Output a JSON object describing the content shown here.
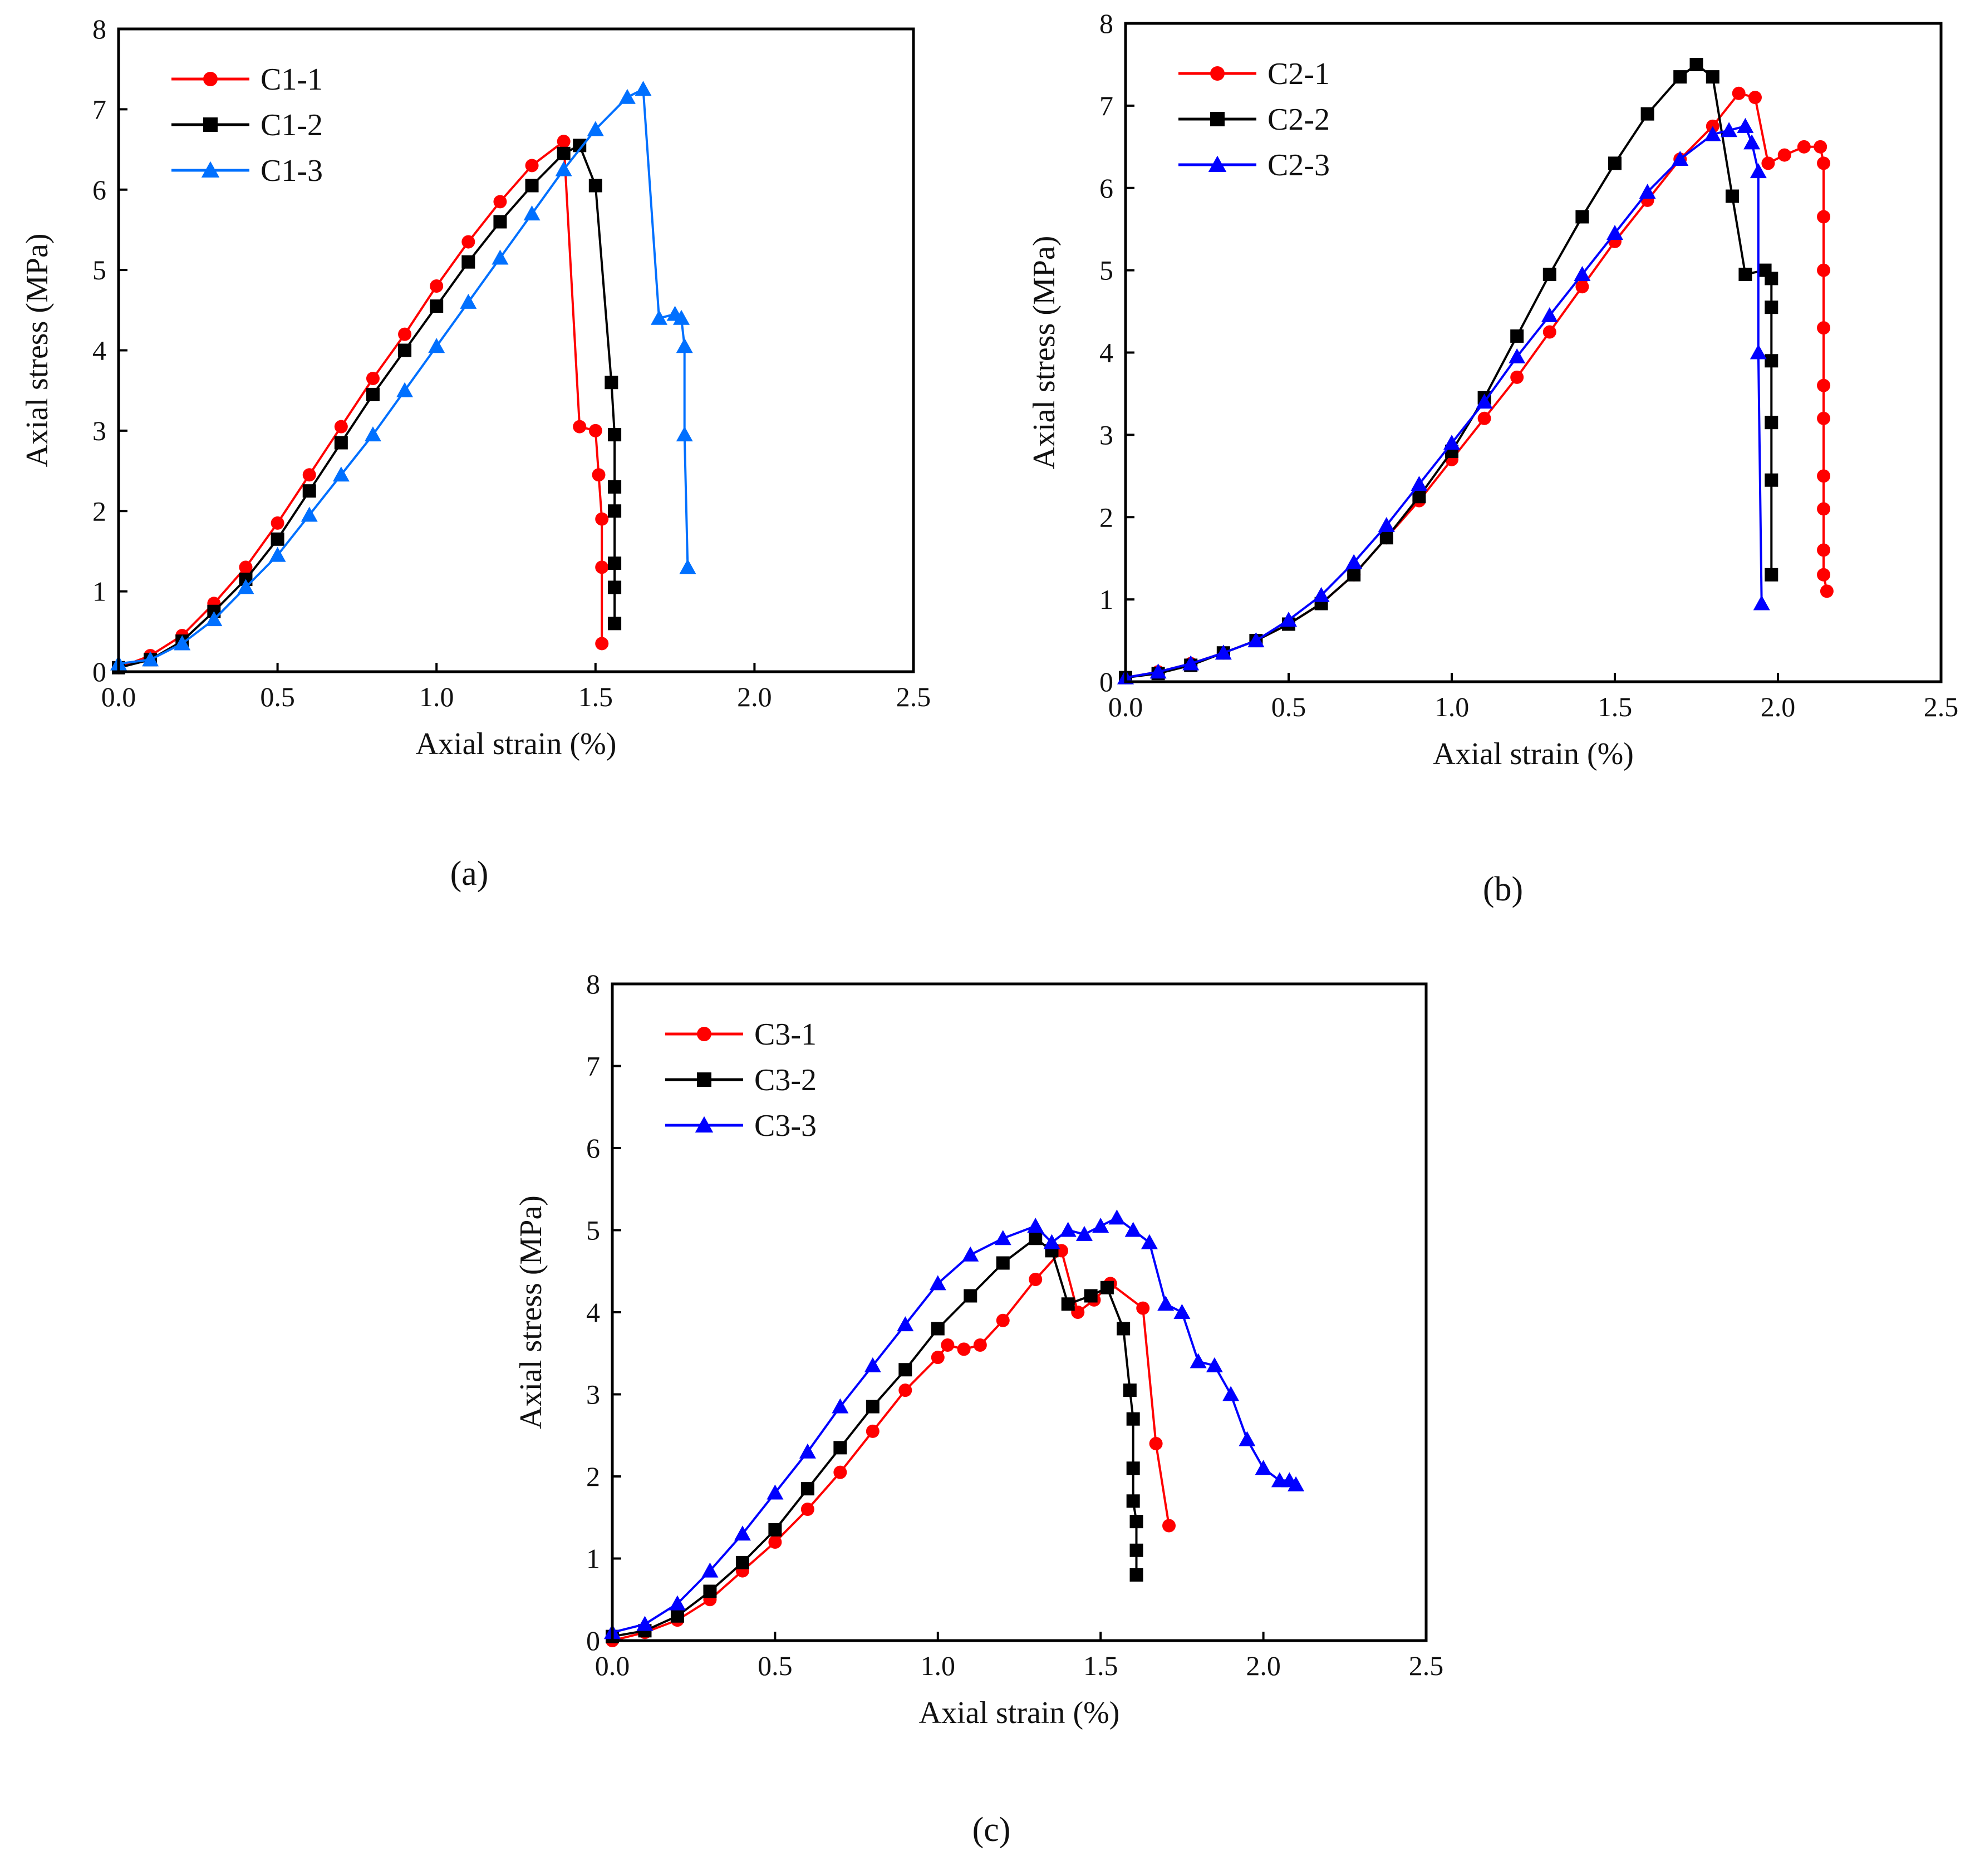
{
  "chart_data": [
    {
      "type": "line",
      "panel_label": "(a)",
      "xlabel": "Axial strain (%)",
      "ylabel": "Axial stress (MPa)",
      "xlim": [
        0,
        2.5
      ],
      "ylim": [
        0,
        8
      ],
      "xticks": [
        "0.0",
        "0.5",
        "1.0",
        "1.5",
        "2.0",
        "2.5"
      ],
      "yticks": [
        "0",
        "1",
        "2",
        "3",
        "4",
        "5",
        "6",
        "7",
        "8"
      ],
      "legend_position": "top-left",
      "series": [
        {
          "name": "C1-1",
          "color": "#ff0000",
          "marker": "circle",
          "x": [
            0,
            0.1,
            0.2,
            0.3,
            0.4,
            0.5,
            0.6,
            0.7,
            0.8,
            0.9,
            1.0,
            1.1,
            1.2,
            1.3,
            1.4,
            1.45,
            1.5,
            1.51,
            1.52,
            1.52,
            1.52
          ],
          "y": [
            0.05,
            0.2,
            0.45,
            0.85,
            1.3,
            1.85,
            2.45,
            3.05,
            3.65,
            4.2,
            4.8,
            5.35,
            5.85,
            6.3,
            6.6,
            3.05,
            3.0,
            2.45,
            1.9,
            1.3,
            0.35
          ]
        },
        {
          "name": "C1-2",
          "color": "#000000",
          "marker": "square",
          "x": [
            0,
            0.1,
            0.2,
            0.3,
            0.4,
            0.5,
            0.6,
            0.7,
            0.8,
            0.9,
            1.0,
            1.1,
            1.2,
            1.3,
            1.4,
            1.45,
            1.5,
            1.55,
            1.56,
            1.56,
            1.56,
            1.56,
            1.56,
            1.56
          ],
          "y": [
            0.05,
            0.15,
            0.38,
            0.75,
            1.15,
            1.65,
            2.25,
            2.85,
            3.45,
            4.0,
            4.55,
            5.1,
            5.6,
            6.05,
            6.45,
            6.55,
            6.05,
            3.6,
            2.95,
            2.3,
            2.0,
            1.35,
            1.05,
            0.6
          ]
        },
        {
          "name": "C1-3",
          "color": "#0070ff",
          "marker": "triangle",
          "x": [
            0,
            0.1,
            0.2,
            0.3,
            0.4,
            0.5,
            0.6,
            0.7,
            0.8,
            0.9,
            1.0,
            1.1,
            1.2,
            1.3,
            1.4,
            1.5,
            1.6,
            1.65,
            1.7,
            1.75,
            1.77,
            1.78,
            1.78,
            1.79
          ],
          "y": [
            0.1,
            0.15,
            0.35,
            0.65,
            1.05,
            1.45,
            1.95,
            2.45,
            2.95,
            3.5,
            4.05,
            4.6,
            5.15,
            5.7,
            6.25,
            6.75,
            7.15,
            7.25,
            4.4,
            4.45,
            4.4,
            4.05,
            2.95,
            1.3
          ]
        }
      ]
    },
    {
      "type": "line",
      "panel_label": "(b)",
      "xlabel": "Axial strain (%)",
      "ylabel": "Axial stress (MPa)",
      "xlim": [
        0,
        2.5
      ],
      "ylim": [
        0,
        8
      ],
      "xticks": [
        "0.0",
        "0.5",
        "1.0",
        "1.5",
        "2.0",
        "2.5"
      ],
      "yticks": [
        "0",
        "1",
        "2",
        "3",
        "4",
        "5",
        "6",
        "7",
        "8"
      ],
      "legend_position": "top-left",
      "series": [
        {
          "name": "C2-1",
          "color": "#ff0000",
          "marker": "circle",
          "x": [
            0,
            0.1,
            0.2,
            0.3,
            0.4,
            0.5,
            0.6,
            0.7,
            0.8,
            0.9,
            1.0,
            1.1,
            1.2,
            1.3,
            1.4,
            1.5,
            1.6,
            1.7,
            1.8,
            1.88,
            1.93,
            1.97,
            2.02,
            2.08,
            2.13,
            2.14,
            2.14,
            2.14,
            2.14,
            2.14,
            2.14,
            2.14,
            2.14,
            2.14,
            2.14,
            2.15
          ],
          "y": [
            0.05,
            0.12,
            0.22,
            0.35,
            0.5,
            0.7,
            0.95,
            1.3,
            1.75,
            2.2,
            2.7,
            3.2,
            3.7,
            4.25,
            4.8,
            5.35,
            5.85,
            6.35,
            6.75,
            7.15,
            7.1,
            6.3,
            6.4,
            6.5,
            6.5,
            6.3,
            5.65,
            5.0,
            4.3,
            3.6,
            3.2,
            2.5,
            2.1,
            1.6,
            1.3,
            1.1
          ]
        },
        {
          "name": "C2-2",
          "color": "#000000",
          "marker": "square",
          "x": [
            0,
            0.1,
            0.2,
            0.3,
            0.4,
            0.5,
            0.6,
            0.7,
            0.8,
            0.9,
            1.0,
            1.1,
            1.2,
            1.3,
            1.4,
            1.5,
            1.6,
            1.7,
            1.75,
            1.8,
            1.86,
            1.9,
            1.96,
            1.98,
            1.98,
            1.98,
            1.98,
            1.98,
            1.98
          ],
          "y": [
            0.05,
            0.1,
            0.2,
            0.35,
            0.5,
            0.7,
            0.95,
            1.3,
            1.75,
            2.25,
            2.8,
            3.45,
            4.2,
            4.95,
            5.65,
            6.3,
            6.9,
            7.35,
            7.5,
            7.35,
            5.9,
            4.95,
            5.0,
            4.9,
            4.55,
            3.9,
            3.15,
            2.45,
            1.3
          ]
        },
        {
          "name": "C2-3",
          "color": "#0000ff",
          "marker": "triangle",
          "x": [
            0,
            0.1,
            0.2,
            0.3,
            0.4,
            0.5,
            0.6,
            0.7,
            0.8,
            0.9,
            1.0,
            1.1,
            1.2,
            1.3,
            1.4,
            1.5,
            1.6,
            1.7,
            1.8,
            1.85,
            1.9,
            1.92,
            1.94,
            1.94,
            1.95
          ],
          "y": [
            0.05,
            0.12,
            0.22,
            0.35,
            0.5,
            0.75,
            1.05,
            1.45,
            1.9,
            2.4,
            2.9,
            3.4,
            3.95,
            4.45,
            4.95,
            5.45,
            5.95,
            6.35,
            6.65,
            6.7,
            6.75,
            6.55,
            6.2,
            4.0,
            0.95
          ]
        }
      ]
    },
    {
      "type": "line",
      "panel_label": "(c)",
      "xlabel": "Axial strain (%)",
      "ylabel": "Axial stress (MPa)",
      "xlim": [
        0,
        2.5
      ],
      "ylim": [
        0,
        8
      ],
      "xticks": [
        "0.0",
        "0.5",
        "1.0",
        "1.5",
        "2.0",
        "2.5"
      ],
      "yticks": [
        "0",
        "1",
        "2",
        "3",
        "4",
        "5",
        "6",
        "7",
        "8"
      ],
      "legend_position": "top-left",
      "series": [
        {
          "name": "C3-1",
          "color": "#ff0000",
          "marker": "circle",
          "x": [
            0,
            0.1,
            0.2,
            0.3,
            0.4,
            0.5,
            0.6,
            0.7,
            0.8,
            0.9,
            1.0,
            1.03,
            1.08,
            1.13,
            1.2,
            1.3,
            1.38,
            1.43,
            1.48,
            1.53,
            1.63,
            1.67,
            1.71
          ],
          "y": [
            0.0,
            0.1,
            0.25,
            0.5,
            0.85,
            1.2,
            1.6,
            2.05,
            2.55,
            3.05,
            3.45,
            3.6,
            3.55,
            3.6,
            3.9,
            4.4,
            4.75,
            4.0,
            4.15,
            4.35,
            4.05,
            2.4,
            1.4
          ]
        },
        {
          "name": "C3-2",
          "color": "#000000",
          "marker": "square",
          "x": [
            0,
            0.1,
            0.2,
            0.3,
            0.4,
            0.5,
            0.6,
            0.7,
            0.8,
            0.9,
            1.0,
            1.1,
            1.2,
            1.3,
            1.35,
            1.4,
            1.47,
            1.52,
            1.57,
            1.59,
            1.6,
            1.6,
            1.6,
            1.61,
            1.61,
            1.61
          ],
          "y": [
            0.05,
            0.12,
            0.3,
            0.6,
            0.95,
            1.35,
            1.85,
            2.35,
            2.85,
            3.3,
            3.8,
            4.2,
            4.6,
            4.9,
            4.75,
            4.1,
            4.2,
            4.3,
            3.8,
            3.05,
            2.7,
            2.1,
            1.7,
            1.45,
            1.1,
            0.8
          ]
        },
        {
          "name": "C3-3",
          "color": "#0000ff",
          "marker": "triangle",
          "x": [
            0,
            0.1,
            0.2,
            0.3,
            0.4,
            0.5,
            0.6,
            0.7,
            0.8,
            0.9,
            1.0,
            1.1,
            1.2,
            1.3,
            1.35,
            1.4,
            1.45,
            1.5,
            1.55,
            1.6,
            1.65,
            1.7,
            1.75,
            1.8,
            1.85,
            1.9,
            1.95,
            2.0,
            2.05,
            2.08,
            2.1
          ],
          "y": [
            0.1,
            0.2,
            0.45,
            0.85,
            1.3,
            1.8,
            2.3,
            2.85,
            3.35,
            3.85,
            4.35,
            4.7,
            4.9,
            5.05,
            4.85,
            5.0,
            4.95,
            5.05,
            5.15,
            5.0,
            4.85,
            4.1,
            4.0,
            3.4,
            3.35,
            3.0,
            2.45,
            2.1,
            1.95,
            1.95,
            1.9
          ]
        }
      ]
    }
  ]
}
